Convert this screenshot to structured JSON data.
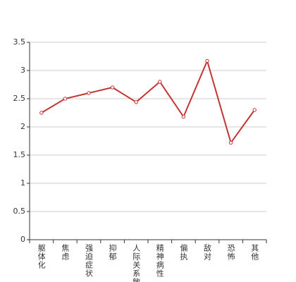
{
  "chart_data": {
    "type": "line",
    "categories": [
      "躯体化",
      "焦虑",
      "强迫症状",
      "抑郁",
      "人际关系敏感",
      "精神病性",
      "偏执",
      "敌对",
      "恐怖",
      "其他"
    ],
    "series": [
      {
        "color": "#c23531",
        "values": [
          2.25,
          2.5,
          2.6,
          2.7,
          2.44,
          2.8,
          2.18,
          3.17,
          1.72,
          2.3
        ]
      }
    ],
    "ylim": [
      0,
      3.5
    ],
    "yticks": [
      0,
      0.5,
      1,
      1.5,
      2,
      2.5,
      3,
      3.5
    ],
    "grid": true
  }
}
